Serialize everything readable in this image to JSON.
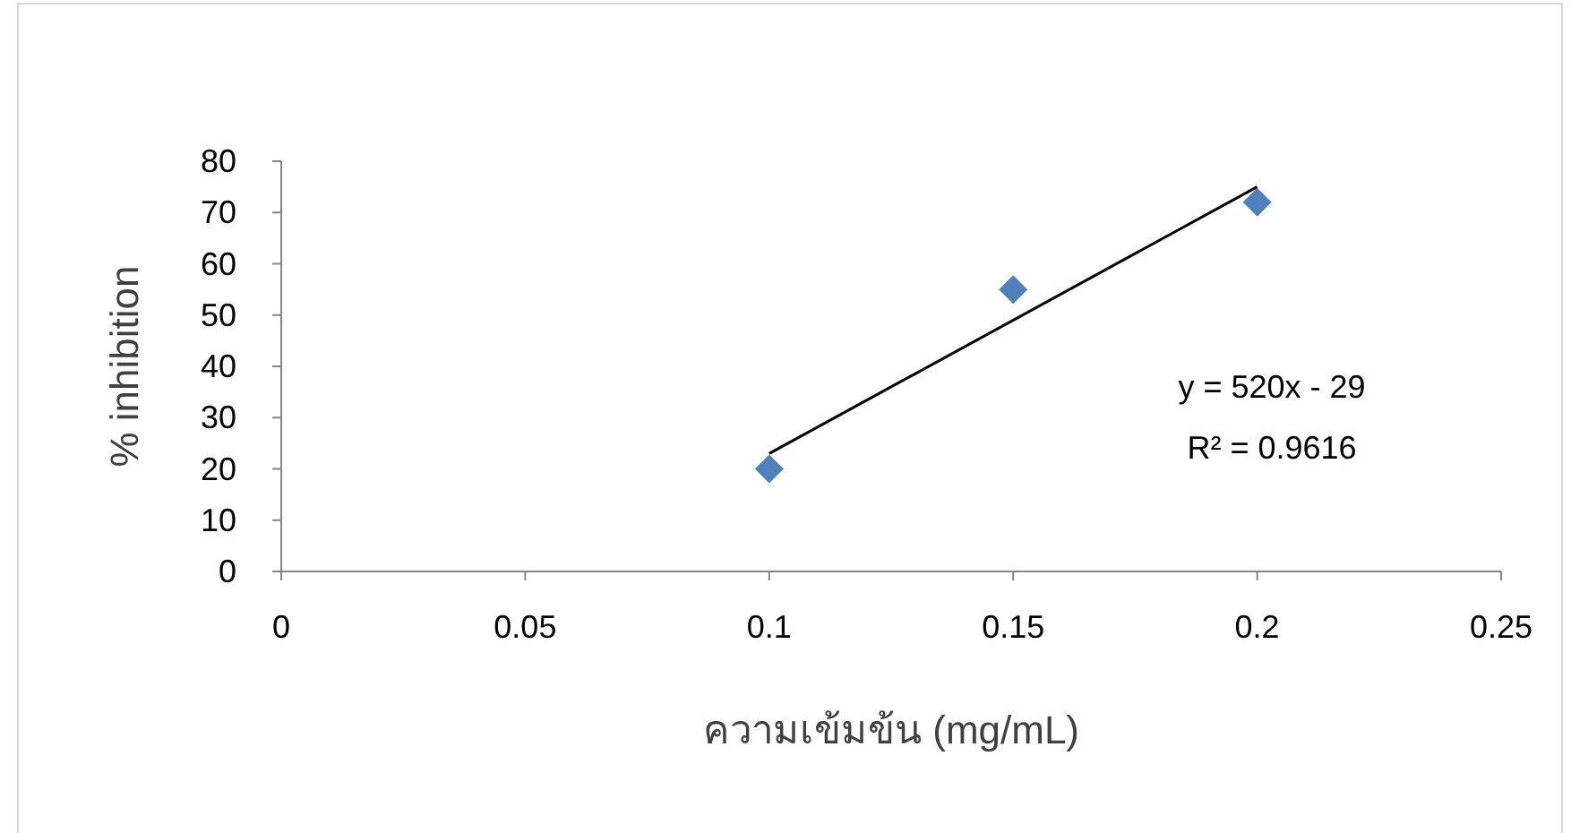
{
  "chart_data": {
    "type": "scatter",
    "xlabel": "ความเข้มข้น (mg/mL)",
    "ylabel": "% inhibition",
    "xlim": [
      0,
      0.25
    ],
    "xticks": [
      0,
      0.05,
      0.1,
      0.15,
      0.2,
      0.25
    ],
    "ylim": [
      0,
      80
    ],
    "yticks": [
      0,
      10,
      20,
      30,
      40,
      50,
      60,
      70,
      80
    ],
    "grid": false,
    "series": [
      {
        "type": "scatter",
        "color": "#4f81bd",
        "marker": "diamond",
        "x": [
          0.1,
          0.15,
          0.2
        ],
        "values": [
          20,
          55,
          72
        ]
      },
      {
        "type": "line",
        "color": "#000000",
        "marker": "none",
        "x": [
          0.1,
          0.2
        ],
        "values": [
          23,
          75
        ]
      }
    ],
    "annotations": [
      "y = 520x - 29",
      "R² = 0.9616"
    ]
  }
}
